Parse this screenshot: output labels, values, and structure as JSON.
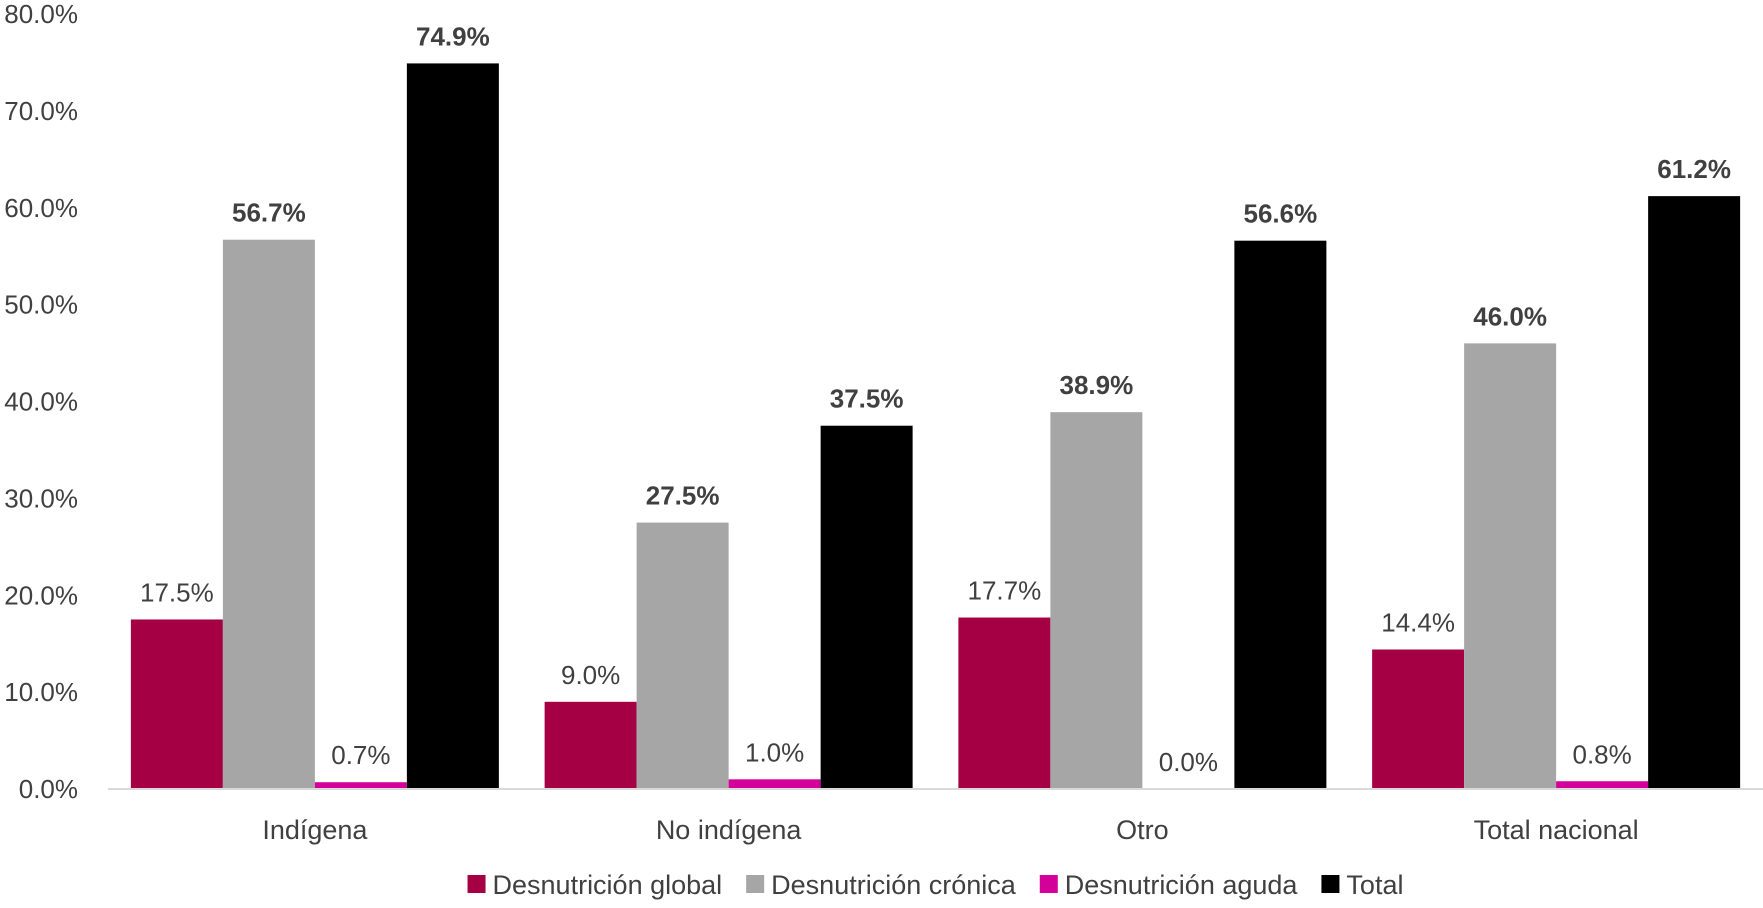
{
  "chart_data": {
    "type": "bar",
    "categories": [
      "Indígena",
      "No indígena",
      "Otro",
      "Total nacional"
    ],
    "series": [
      {
        "name": "Desnutrición global",
        "values": [
          17.5,
          9.0,
          17.7,
          14.4
        ],
        "labels": [
          "17.5%",
          "9.0%",
          "17.7%",
          "14.4%"
        ],
        "color": "#A50044",
        "label_bold": false
      },
      {
        "name": "Desnutrición crónica",
        "values": [
          56.7,
          27.5,
          38.9,
          46.0
        ],
        "labels": [
          "56.7%",
          "27.5%",
          "38.9%",
          "46.0%"
        ],
        "color": "#A6A6A6",
        "label_bold": true
      },
      {
        "name": "Desnutrición aguda",
        "values": [
          0.7,
          1.0,
          0.0,
          0.8
        ],
        "labels": [
          "0.7%",
          "1.0%",
          "0.0%",
          "0.8%"
        ],
        "color": "#D4009A",
        "label_bold": false
      },
      {
        "name": "Total",
        "values": [
          74.9,
          37.5,
          56.6,
          61.2
        ],
        "labels": [
          "74.9%",
          "37.5%",
          "56.6%",
          "61.2%"
        ],
        "color": "#000000",
        "label_bold": true
      }
    ],
    "y_ticks": [
      "0.0%",
      "10.0%",
      "20.0%",
      "30.0%",
      "40.0%",
      "50.0%",
      "60.0%",
      "70.0%",
      "80.0%"
    ],
    "ylim": [
      0,
      80
    ],
    "grid": false,
    "legend_position": "bottom"
  }
}
